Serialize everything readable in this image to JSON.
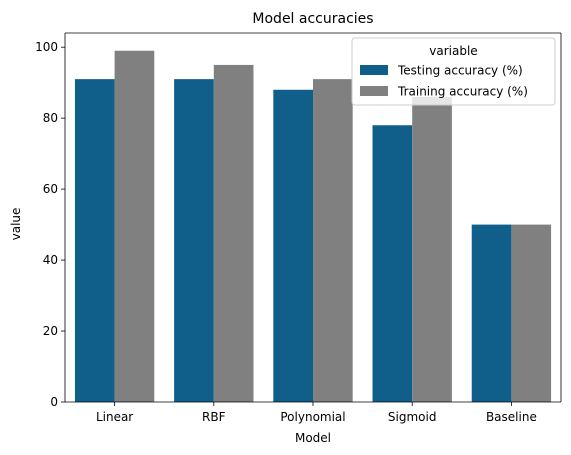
{
  "chart_data": {
    "type": "bar",
    "title": "Model accuracies",
    "xlabel": "Model",
    "ylabel": "value",
    "categories": [
      "Linear",
      "RBF",
      "Polynomial",
      "Sigmoid",
      "Baseline"
    ],
    "series": [
      {
        "name": "Testing accuracy (%)",
        "values": [
          91,
          91,
          88,
          78,
          50
        ],
        "color": "#0f5f8a"
      },
      {
        "name": "Training accuracy (%)",
        "values": [
          99,
          95,
          91,
          86,
          50
        ],
        "color": "#808080"
      }
    ],
    "ylim": [
      0,
      104
    ],
    "yticks": [
      0,
      20,
      40,
      60,
      80,
      100
    ],
    "grid": false,
    "legend": {
      "title": "variable",
      "placement": "top-right"
    }
  }
}
